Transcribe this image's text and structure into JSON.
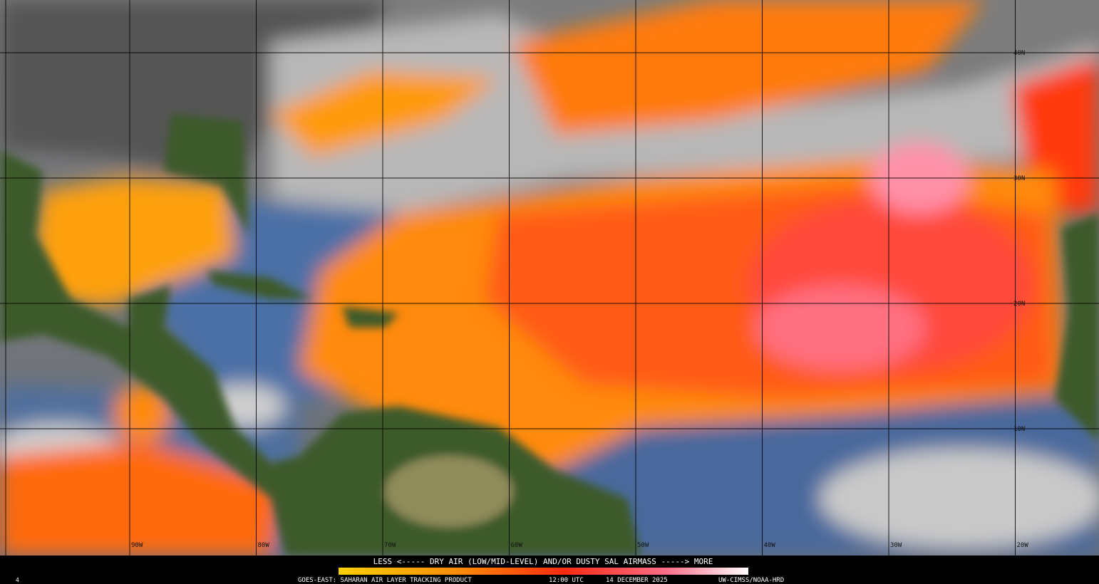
{
  "map": {
    "lat_labels": [
      "40N",
      "30N",
      "20N",
      "10N"
    ],
    "lon_labels": [
      "90W",
      "80W",
      "70W",
      "60W",
      "50W",
      "40W",
      "30W",
      "20W"
    ]
  },
  "legend": {
    "text": "LESS <----- DRY AIR (LOW/MID-LEVEL) AND/OR DUSTY SAL AIRMASS -----> MORE"
  },
  "footer": {
    "frame": "4",
    "product": "GOES-EAST: SAHARAN AIR LAYER TRACKING PRODUCT",
    "time": "12:00 UTC",
    "date": "14 DECEMBER 2025",
    "credit": "UW-CIMSS/NOAA-HRD"
  }
}
